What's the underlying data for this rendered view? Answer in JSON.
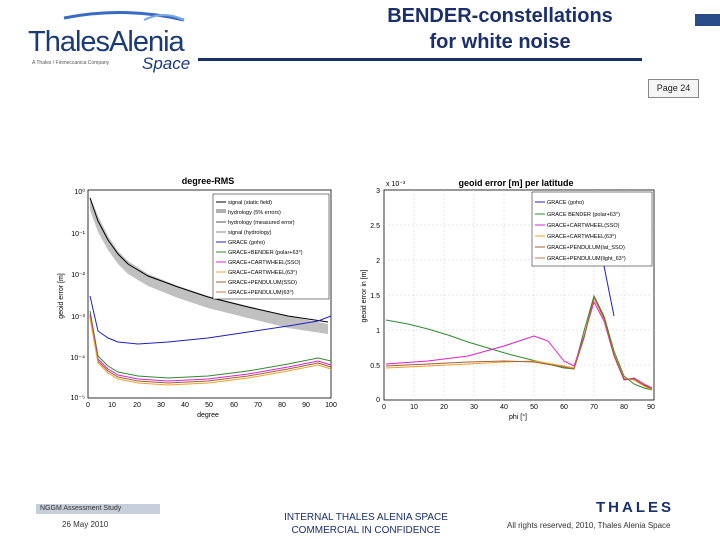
{
  "header": {
    "logo": {
      "main": "ThalesAlenia",
      "sub": "A Thales / Finmeccanica Company",
      "space": "Space"
    },
    "title_line1": "BENDER-constellations",
    "title_line2": "for white noise",
    "page_label": "Page 24"
  },
  "left_chart": {
    "title": "degree-RMS",
    "xlabel": "degree",
    "ylabel": "geoid error [m]",
    "yticks": [
      "10⁰",
      "10⁻¹",
      "10⁻²",
      "10⁻³",
      "10⁻⁴",
      "10⁻⁵"
    ],
    "xticks": [
      "0",
      "10",
      "20",
      "30",
      "40",
      "50",
      "60",
      "70",
      "80",
      "90",
      "100"
    ],
    "legend": [
      "signal (static field)",
      "hydrology (5% errors)",
      "hydrology (measured error)",
      "signal (hydrology)",
      "GRACE (goho)",
      "GRACE+BENDER (polar+63°)",
      "GRACE+CARTWHEEL(SSO)",
      "GRACE+CARTWHEEL(63°)",
      "GRACE+PENDULUM(SSO)",
      "GRACE+PENDULUM(63°)"
    ]
  },
  "right_chart": {
    "title": "geoid error [m] per latitude",
    "exponent": "x 10⁻³",
    "xlabel": "phi [°]",
    "ylabel": "geoid error in [m]",
    "yticks": [
      "3",
      "2.5",
      "2",
      "1.5",
      "1",
      "0.5",
      "0"
    ],
    "xticks": [
      "0",
      "10",
      "20",
      "30",
      "40",
      "50",
      "60",
      "70",
      "80",
      "90"
    ],
    "legend": [
      "GRACE (goho)",
      "GRACE BENDER (polar+63°)",
      "GRACE+CARTWHEEL(SSO)",
      "GRACE+CARTWHEEL(63°)",
      "GRACE+PENDULUM(lat_SSO)",
      "GRACE+PENDULUM(light_63°)"
    ]
  },
  "colors": {
    "navy": "#1a2f6b",
    "green": "#2e8b2e",
    "magenta": "#e020d0",
    "orange": "#f0a030",
    "brown": "#a06030",
    "blue": "#2020c0",
    "grey": "#b0b0b0",
    "black": "#000000"
  },
  "footer": {
    "study": "NGGM Assessment Study",
    "date": "26 May 2010",
    "confidential_line1": "INTERNAL THALES ALENIA SPACE",
    "confidential_line2": "COMMERCIAL IN CONFIDENCE",
    "brand": "THALES",
    "rights": "All rights reserved, 2010, Thales Alenia Space"
  }
}
